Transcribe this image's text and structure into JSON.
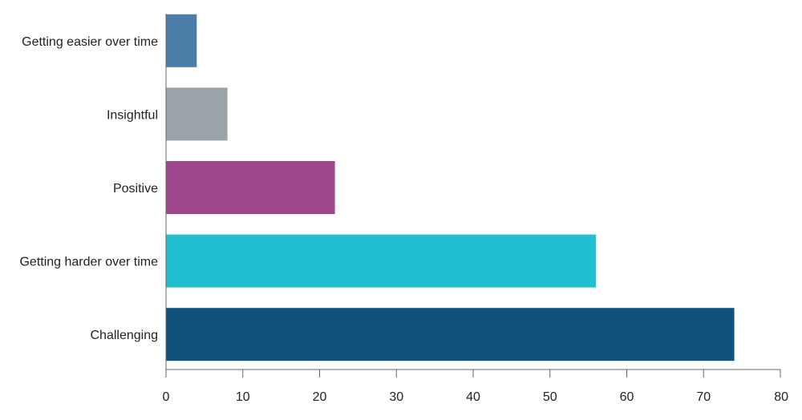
{
  "chart_data": {
    "type": "bar",
    "orientation": "horizontal",
    "title": "",
    "xlabel": "",
    "ylabel": "",
    "categories": [
      "Getting easier over time",
      "Insightful",
      "Positive",
      "Getting harder over time",
      "Challenging"
    ],
    "values": [
      4,
      8,
      22,
      56,
      74
    ],
    "colors": [
      "#4a7ea8",
      "#9aa3a8",
      "#a0468f",
      "#21bfcf",
      "#0f527a"
    ],
    "xlim": [
      0,
      80
    ],
    "xticks": [
      0,
      10,
      20,
      30,
      40,
      50,
      60,
      70,
      80
    ],
    "xtick_labels": [
      "0",
      "10",
      "20",
      "30",
      "40",
      "50",
      "60",
      "70",
      "80"
    ],
    "grid": false,
    "legend": "none"
  }
}
